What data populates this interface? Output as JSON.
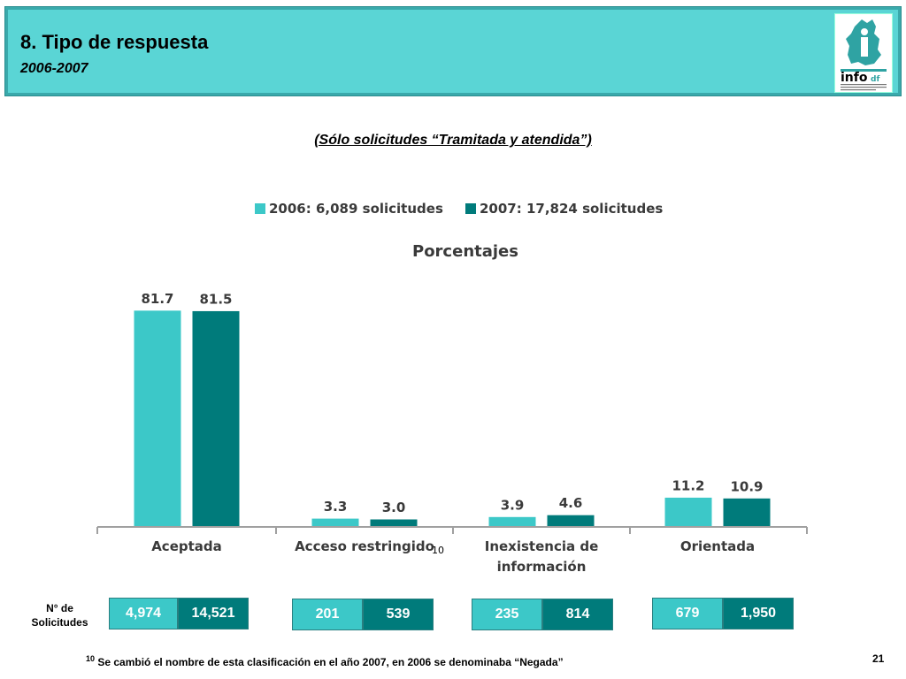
{
  "header": {
    "title": "8. Tipo de respuesta",
    "subtitle": "2006-2007",
    "logo_text": "info",
    "logo_suffix": "df"
  },
  "subtitle": "(Sólo solicitudes “Tramitada y atendida”)",
  "colors": {
    "series_2006": "#3cc8c8",
    "series_2007": "#007b7b",
    "header_bg": "#5ad5d5"
  },
  "chart_data": {
    "type": "bar",
    "title": "Porcentajes",
    "legend_position": "top",
    "categories": [
      "Aceptada",
      "Acceso restringido",
      "Inexistencia de información",
      "Orientada"
    ],
    "category_superscripts": [
      "",
      "10",
      "",
      ""
    ],
    "series": [
      {
        "name": "2006: 6,089 solicitudes",
        "values": [
          81.7,
          3.3,
          3.9,
          11.2
        ],
        "labels": [
          "81.7",
          "3.3",
          "3.9",
          "11.2"
        ]
      },
      {
        "name": "2007: 17,824 solicitudes",
        "values": [
          81.5,
          3.0,
          4.6,
          10.9
        ],
        "labels": [
          "81.5",
          "3.0",
          "4.6",
          "10.9"
        ]
      }
    ],
    "ylim": [
      0,
      100
    ],
    "grid": false
  },
  "counts": {
    "label_line1": "N° de",
    "label_line2": "Solicitudes",
    "rows": [
      {
        "y2006": "4,974",
        "y2007": "14,521"
      },
      {
        "y2006": "201",
        "y2007": "539"
      },
      {
        "y2006": "235",
        "y2007": "814"
      },
      {
        "y2006": "679",
        "y2007": "1,950"
      }
    ]
  },
  "footnote": {
    "marker": "10",
    "text": " Se cambió el nombre de esta clasificación en el  año 2007, en 2006 se denominaba “Negada”"
  },
  "page_number": "21"
}
